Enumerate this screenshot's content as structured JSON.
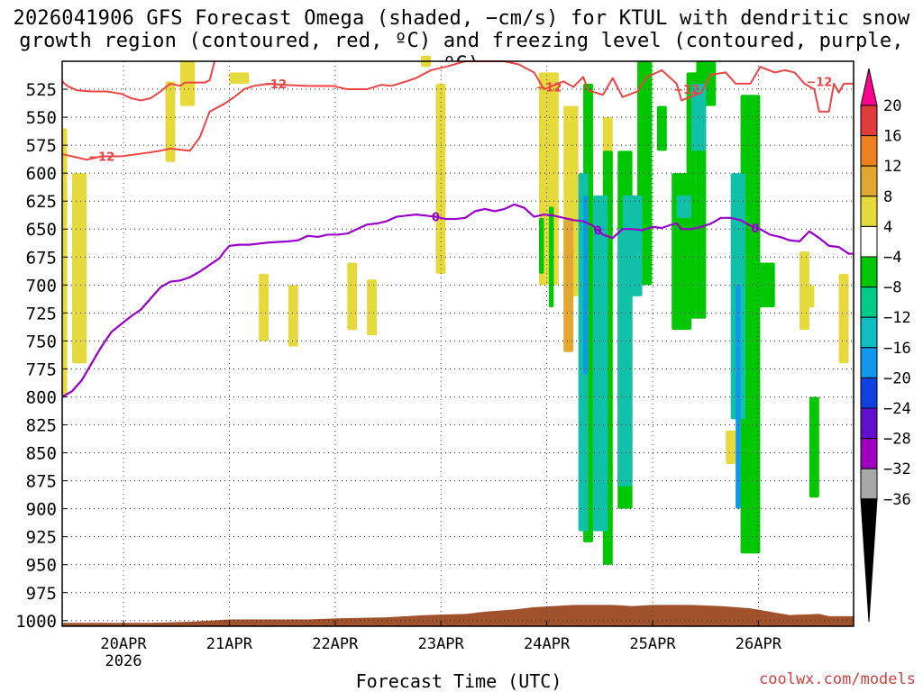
{
  "chart_data": {
    "type": "heatmap",
    "title_line1": "2026041906 GFS Forecast Omega (shaded, −cm/s) for KTUL with dendritic snow",
    "title_line2": "growth region (contoured, red, ºC) and freezing level (contoured, purple, ºC)",
    "xlabel": "Forecast Time (UTC)",
    "ylabel": "Pressure (hPa)",
    "credit": "coolwx.com/models",
    "x_ticks": [
      "20APR",
      "21APR",
      "22APR",
      "23APR",
      "24APR",
      "25APR",
      "26APR"
    ],
    "x_subtick_label": "2026",
    "xlim_hours_from_start": [
      0,
      161
    ],
    "y_ticks": [
      525,
      550,
      575,
      600,
      625,
      650,
      675,
      700,
      725,
      750,
      775,
      800,
      825,
      850,
      875,
      900,
      925,
      950,
      975,
      1000
    ],
    "ylim_hpa": [
      500,
      1005
    ],
    "colorbar_labels": [
      "20",
      "16",
      "12",
      "8",
      "4",
      "−4",
      "−8",
      "−12",
      "−16",
      "−20",
      "−24",
      "−28",
      "−32",
      "−36"
    ],
    "colorbar_colors": [
      "#ff0090",
      "#e03c3c",
      "#ee8020",
      "#e0a830",
      "#e6d93c",
      "#ffffff",
      "#00c800",
      "#00cc88",
      "#10bdc0",
      "#1098ee",
      "#1040e0",
      "#6010cc",
      "#a000c0",
      "#a8a8a8",
      "#000000"
    ],
    "contour_red_12_label": "−12",
    "contour_purple_0_label": "0",
    "contour_red_upper": [
      [
        0,
        518
      ],
      [
        1,
        522
      ],
      [
        3,
        526
      ],
      [
        6,
        527
      ],
      [
        9,
        527
      ],
      [
        12,
        529
      ],
      [
        14,
        533
      ],
      [
        16,
        535
      ],
      [
        18,
        533
      ],
      [
        20,
        527
      ],
      [
        22,
        520
      ],
      [
        24,
        522
      ],
      [
        25,
        519
      ],
      [
        29,
        519
      ],
      [
        30,
        517
      ],
      [
        31,
        500
      ]
    ],
    "contour_red_lower": [
      [
        0,
        583
      ],
      [
        2,
        585
      ],
      [
        5,
        588
      ],
      [
        8,
        585
      ],
      [
        12,
        585
      ],
      [
        17,
        582
      ],
      [
        20,
        580
      ],
      [
        22,
        578
      ],
      [
        26,
        580
      ],
      [
        28,
        568
      ],
      [
        30,
        545
      ],
      [
        33,
        538
      ],
      [
        35,
        532
      ],
      [
        37,
        525
      ],
      [
        39,
        522
      ],
      [
        42,
        520
      ],
      [
        45,
        521
      ],
      [
        50,
        522
      ],
      [
        55,
        522
      ],
      [
        58,
        525
      ],
      [
        62,
        525
      ],
      [
        65,
        521
      ],
      [
        67,
        522
      ],
      [
        70,
        518
      ],
      [
        72,
        515
      ],
      [
        75,
        508
      ],
      [
        78,
        505
      ],
      [
        82,
        500
      ],
      [
        86,
        500
      ],
      [
        90,
        500
      ],
      [
        93,
        503
      ],
      [
        96,
        510
      ],
      [
        98,
        525
      ],
      [
        102,
        518
      ],
      [
        104,
        523
      ],
      [
        106,
        514
      ],
      [
        107,
        526
      ],
      [
        110,
        530
      ],
      [
        112,
        515
      ],
      [
        114,
        532
      ],
      [
        117,
        527
      ],
      [
        119,
        514
      ],
      [
        122,
        508
      ],
      [
        125,
        520
      ],
      [
        126,
        535
      ],
      [
        130,
        528
      ],
      [
        132,
        512
      ],
      [
        135,
        510
      ],
      [
        137,
        520
      ],
      [
        140,
        520
      ],
      [
        142,
        505
      ],
      [
        145,
        510
      ],
      [
        147,
        508
      ],
      [
        149,
        510
      ],
      [
        151,
        520
      ],
      [
        153,
        525
      ],
      [
        154,
        545
      ],
      [
        156,
        545
      ],
      [
        157,
        520
      ],
      [
        158,
        528
      ],
      [
        159,
        520
      ],
      [
        161,
        520
      ]
    ],
    "contour_purple_freezing": [
      [
        0,
        800
      ],
      [
        2,
        795
      ],
      [
        4,
        785
      ],
      [
        6,
        770
      ],
      [
        8,
        755
      ],
      [
        10,
        742
      ],
      [
        12,
        735
      ],
      [
        14,
        728
      ],
      [
        16,
        722
      ],
      [
        18,
        712
      ],
      [
        20,
        702
      ],
      [
        22,
        697
      ],
      [
        24,
        696
      ],
      [
        26,
        693
      ],
      [
        28,
        688
      ],
      [
        30,
        682
      ],
      [
        32,
        676
      ],
      [
        33,
        670
      ],
      [
        34,
        665
      ],
      [
        36,
        664
      ],
      [
        38,
        664
      ],
      [
        40,
        663
      ],
      [
        42,
        662
      ],
      [
        46,
        661
      ],
      [
        48,
        660
      ],
      [
        50,
        656
      ],
      [
        52,
        657
      ],
      [
        54,
        655
      ],
      [
        56,
        655
      ],
      [
        58,
        654
      ],
      [
        60,
        650
      ],
      [
        62,
        646
      ],
      [
        64,
        645
      ],
      [
        66,
        643
      ],
      [
        68,
        639
      ],
      [
        70,
        638
      ],
      [
        72,
        637
      ],
      [
        74,
        638
      ],
      [
        76,
        639
      ],
      [
        78,
        641
      ],
      [
        80,
        641
      ],
      [
        82,
        640
      ],
      [
        84,
        634
      ],
      [
        86,
        632
      ],
      [
        88,
        634
      ],
      [
        90,
        632
      ],
      [
        92,
        628
      ],
      [
        94,
        631
      ],
      [
        96,
        639
      ],
      [
        98,
        637
      ],
      [
        100,
        638
      ],
      [
        102,
        640
      ],
      [
        104,
        642
      ],
      [
        106,
        643
      ],
      [
        108,
        647
      ],
      [
        110,
        655
      ],
      [
        112,
        658
      ],
      [
        114,
        650
      ],
      [
        116,
        650
      ],
      [
        118,
        651
      ],
      [
        120,
        648
      ],
      [
        122,
        649
      ],
      [
        124,
        646
      ],
      [
        125,
        645
      ],
      [
        126,
        650
      ],
      [
        128,
        650
      ],
      [
        130,
        648
      ],
      [
        132,
        645
      ],
      [
        134,
        640
      ],
      [
        136,
        640
      ],
      [
        138,
        642
      ],
      [
        140,
        647
      ],
      [
        142,
        650
      ],
      [
        144,
        655
      ],
      [
        146,
        657
      ],
      [
        148,
        660
      ],
      [
        150,
        661
      ],
      [
        152,
        652
      ],
      [
        154,
        658
      ],
      [
        156,
        665
      ],
      [
        158,
        666
      ],
      [
        160,
        672
      ],
      [
        161,
        672
      ]
    ],
    "terrain_surface_hpa": [
      [
        0,
        1002
      ],
      [
        18,
        1002
      ],
      [
        26,
        1001
      ],
      [
        34,
        999
      ],
      [
        50,
        999
      ],
      [
        56,
        998
      ],
      [
        66,
        997
      ],
      [
        74,
        995
      ],
      [
        82,
        994
      ],
      [
        86,
        992
      ],
      [
        92,
        990
      ],
      [
        96,
        988
      ],
      [
        104,
        986
      ],
      [
        112,
        986
      ],
      [
        116,
        987
      ],
      [
        120,
        986
      ],
      [
        128,
        986
      ],
      [
        134,
        987
      ],
      [
        140,
        989
      ],
      [
        144,
        992
      ],
      [
        148,
        995
      ],
      [
        154,
        994
      ],
      [
        156,
        996
      ],
      [
        161,
        996
      ]
    ],
    "shaded_regions_yellow_4_to_8": [
      [
        0,
        1,
        560,
        800
      ],
      [
        2,
        5,
        600,
        770
      ],
      [
        21,
        23,
        518,
        590
      ],
      [
        24,
        27,
        500,
        540
      ],
      [
        34,
        38,
        510,
        520
      ],
      [
        40,
        42,
        690,
        750
      ],
      [
        46,
        48,
        700,
        755
      ],
      [
        58,
        60,
        680,
        740
      ],
      [
        62,
        64,
        695,
        745
      ],
      [
        76,
        78,
        520,
        690
      ],
      [
        73,
        75,
        495,
        505
      ],
      [
        97,
        101,
        510,
        700
      ],
      [
        102,
        105,
        540,
        710
      ],
      [
        110,
        112,
        550,
        640
      ],
      [
        111,
        112,
        860,
        920
      ],
      [
        135,
        137,
        830,
        860
      ],
      [
        151,
        153,
        700,
        720
      ],
      [
        150,
        152,
        670,
        740
      ],
      [
        158,
        160,
        690,
        770
      ],
      [
        163,
        165,
        680,
        820
      ]
    ],
    "shaded_regions_orange_8_to_12": [
      [
        102,
        104,
        640,
        760
      ],
      [
        110,
        111,
        880,
        920
      ]
    ],
    "shaded_regions_green_neg4_to_neg8": [
      [
        97,
        98,
        640,
        690
      ],
      [
        99,
        100,
        630,
        720
      ],
      [
        106,
        108,
        520,
        930
      ],
      [
        110,
        112,
        580,
        950
      ],
      [
        113,
        116,
        580,
        900
      ],
      [
        117,
        120,
        500,
        700
      ],
      [
        121,
        123,
        540,
        580
      ],
      [
        124,
        128,
        600,
        740
      ],
      [
        127,
        131,
        510,
        730
      ],
      [
        129,
        133,
        500,
        540
      ],
      [
        138,
        142,
        530,
        940
      ],
      [
        140,
        145,
        680,
        720
      ],
      [
        152,
        154,
        800,
        890
      ]
    ],
    "shaded_regions_teal_neg8_to_neg16": [
      [
        105,
        107,
        600,
        920
      ],
      [
        108,
        111,
        620,
        920
      ],
      [
        113,
        116,
        650,
        880
      ],
      [
        114,
        118,
        620,
        710
      ],
      [
        125,
        128,
        620,
        640
      ],
      [
        128,
        131,
        520,
        580
      ],
      [
        136,
        139,
        600,
        820
      ]
    ],
    "shaded_regions_blue_neg16_to_neg20": [
      [
        106,
        107,
        620,
        780
      ],
      [
        137,
        138,
        700,
        900
      ]
    ]
  }
}
